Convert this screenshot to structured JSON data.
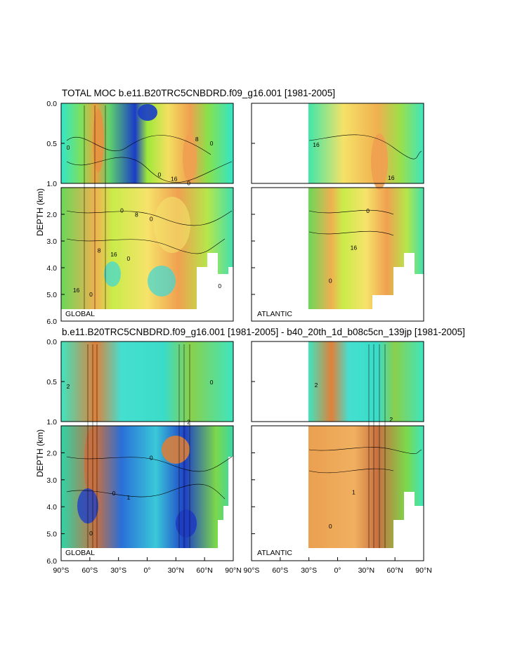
{
  "chart_data": [
    {
      "type": "heatmap",
      "title": "TOTAL MOC b.e11.B20TRC5CNBDRD.f09_g16.001 [1981-2005]",
      "ylabel": "DEPTH (km)",
      "yticks_upper": [
        "0.0",
        "0.5",
        "1.0"
      ],
      "yticks_lower": [
        "2.0",
        "3.0",
        "4.0",
        "5.0",
        "6.0"
      ],
      "ylim": [
        0,
        6
      ],
      "panels": [
        {
          "region": "GLOBAL",
          "xlim": [
            -90,
            90
          ],
          "contour_labels": [
            "0",
            "0",
            "0",
            "0",
            "0",
            "0",
            "16",
            "16",
            "16",
            "8",
            "8",
            "8",
            "0",
            "0",
            "0"
          ]
        },
        {
          "region": "ATLANTIC",
          "xlim": [
            -90,
            90
          ],
          "contour_labels": [
            "16",
            "16",
            "16",
            "0",
            "0"
          ]
        }
      ]
    },
    {
      "type": "heatmap",
      "title": "b.e11.B20TRC5CNBDRD.f09_g16.001 [1981-2005] - b40_20th_1d_b08c5cn_139jp [1981-2005]",
      "ylabel": "DEPTH (km)",
      "yticks_upper": [
        "0.0",
        "0.5",
        "1.0"
      ],
      "yticks_lower": [
        "2.0",
        "3.0",
        "4.0",
        "5.0",
        "6.0"
      ],
      "ylim": [
        0,
        6
      ],
      "xticks": [
        "90°S",
        "60°S",
        "30°S",
        "0°",
        "30°N",
        "60°N",
        "90°N"
      ],
      "xlim": [
        -90,
        90
      ],
      "panels": [
        {
          "region": "GLOBAL",
          "contour_labels": [
            "2",
            "1",
            "2",
            "0",
            "0",
            "0",
            "0"
          ]
        },
        {
          "region": "ATLANTIC",
          "contour_labels": [
            "2",
            "1",
            "2",
            "0"
          ]
        }
      ]
    }
  ]
}
